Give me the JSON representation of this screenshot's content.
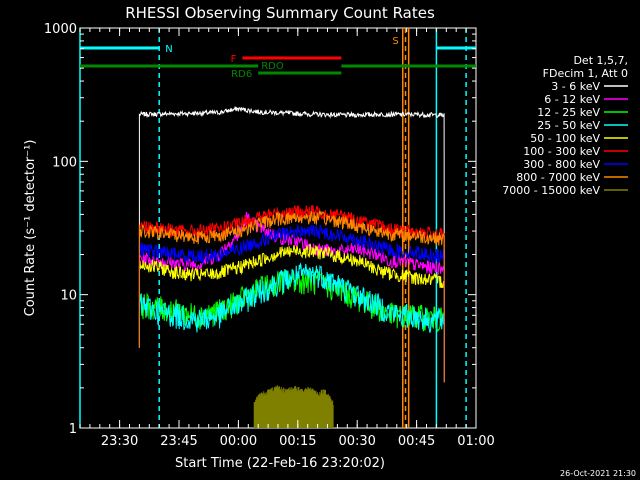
{
  "chart_data": {
    "type": "line",
    "title": "RHESSI Observing Summary Count Rates",
    "xlabel": "Start Time (22-Feb-16 23:20:02)",
    "ylabel": "Count Rate (s⁻¹ detector⁻¹)",
    "y_scale": "log",
    "ylim": [
      1,
      1000
    ],
    "yticks": [
      {
        "value": 1,
        "label": "1"
      },
      {
        "value": 10,
        "label": "10"
      },
      {
        "value": 100,
        "label": "100"
      },
      {
        "value": 1000,
        "label": "1000"
      }
    ],
    "xlim_minutes": [
      0,
      100
    ],
    "xticks": [
      {
        "minute": 10,
        "label": "23:30"
      },
      {
        "minute": 25,
        "label": "23:45"
      },
      {
        "minute": 40,
        "label": "00:00"
      },
      {
        "minute": 55,
        "label": "00:15"
      },
      {
        "minute": 70,
        "label": "00:30"
      },
      {
        "minute": 85,
        "label": "00:45"
      },
      {
        "minute": 100,
        "label": "01:00"
      }
    ],
    "detector_info": [
      "Det 1,5,7,",
      "FDecim 1, Att 0"
    ],
    "flags": [
      {
        "label": "N",
        "color": "#00ffff",
        "segments": [
          [
            0,
            20
          ],
          [
            90,
            100
          ]
        ]
      },
      {
        "label": "F",
        "color": "#ff0000",
        "segments": [
          [
            41,
            66
          ]
        ]
      },
      {
        "label": "RDO",
        "color": "#008800",
        "segments": [
          [
            0,
            45
          ],
          [
            66,
            100
          ]
        ]
      },
      {
        "label": "RD6",
        "color": "#008800",
        "segments": [
          [
            45,
            66
          ]
        ]
      },
      {
        "label": "S",
        "color": "#ff8800",
        "segments": []
      }
    ],
    "vlines": [
      {
        "minute": 0,
        "color": "#00ffff",
        "style": "solid"
      },
      {
        "minute": 20,
        "color": "#00ffff",
        "style": "dashed"
      },
      {
        "minute": 90,
        "color": "#00ffff",
        "style": "solid"
      },
      {
        "minute": 97.5,
        "color": "#00ffff",
        "style": "dashed"
      },
      {
        "minute": 81.5,
        "color": "#ff8800",
        "style": "solid"
      },
      {
        "minute": 83,
        "color": "#ff8800",
        "style": "solid"
      },
      {
        "minute": 82.2,
        "color": "#ff8800",
        "style": "dashed"
      }
    ],
    "series": [
      {
        "name": "3 - 6 keV",
        "color": "#ffffff",
        "x": [
          15,
          25,
          35,
          40,
          45,
          55,
          60,
          68,
          75,
          81,
          84,
          92
        ],
        "y": [
          225,
          228,
          232,
          248,
          235,
          228,
          225,
          222,
          225,
          225,
          225,
          222
        ]
      },
      {
        "name": "6 - 12 keV",
        "color": "#ff00ff",
        "x": [
          15,
          20,
          25,
          30,
          35,
          40,
          42,
          45,
          50,
          55,
          60,
          65,
          70,
          75,
          78,
          81,
          84,
          88,
          92
        ],
        "y": [
          19,
          18,
          17,
          17,
          20,
          28,
          38,
          32,
          27,
          25,
          22,
          21,
          22,
          20,
          18,
          18,
          17,
          16,
          16
        ]
      },
      {
        "name": "12 - 25 keV",
        "color": "#00ff00",
        "x": [
          15,
          20,
          25,
          30,
          35,
          40,
          45,
          50,
          55,
          60,
          65,
          70,
          75,
          78,
          81,
          84,
          88,
          92
        ],
        "y": [
          8.5,
          8,
          7.5,
          7,
          7.5,
          9,
          11,
          12.5,
          13,
          12.5,
          11,
          9.5,
          8,
          7.2,
          7,
          7,
          6.8,
          6.5
        ]
      },
      {
        "name": "25 - 50 keV",
        "color": "#00ffff",
        "x": [
          15,
          20,
          25,
          30,
          35,
          40,
          45,
          50,
          55,
          60,
          65,
          70,
          75,
          78,
          81,
          84,
          88,
          92
        ],
        "y": [
          8.5,
          7.5,
          7,
          6.5,
          7,
          8.5,
          10.5,
          12.5,
          14,
          14.5,
          12,
          10,
          8.5,
          7.5,
          7,
          7,
          6.5,
          6.5
        ]
      },
      {
        "name": "50 - 100 keV",
        "color": "#ffff00",
        "x": [
          15,
          20,
          25,
          30,
          35,
          40,
          45,
          50,
          55,
          60,
          65,
          70,
          75,
          78,
          81,
          84,
          88,
          92
        ],
        "y": [
          17,
          16,
          14.5,
          14,
          14.5,
          16,
          18,
          20.5,
          21.5,
          21,
          19.5,
          18,
          15.5,
          14.5,
          14,
          13.5,
          13,
          12.5
        ]
      },
      {
        "name": "100 - 300 keV",
        "color": "#ff0000",
        "x": [
          15,
          20,
          25,
          30,
          35,
          40,
          45,
          50,
          55,
          60,
          65,
          70,
          75,
          78,
          81,
          84,
          88,
          92
        ],
        "y": [
          33,
          32,
          30,
          30,
          31,
          34,
          38,
          41,
          42,
          42,
          40,
          36,
          33,
          31,
          30,
          30,
          29,
          28
        ]
      },
      {
        "name": "300 - 800 keV",
        "color": "#0000ff",
        "x": [
          15,
          20,
          25,
          30,
          35,
          40,
          45,
          50,
          55,
          60,
          65,
          70,
          75,
          78,
          81,
          84,
          88,
          92
        ],
        "y": [
          22,
          21,
          20,
          19.5,
          20,
          22,
          25,
          28,
          30,
          30,
          28,
          26,
          23,
          22,
          21,
          21,
          20,
          19.5
        ]
      },
      {
        "name": "800 - 7000 keV",
        "color": "#ff8800",
        "x": [
          15,
          20,
          25,
          30,
          35,
          40,
          45,
          50,
          55,
          60,
          65,
          70,
          75,
          78,
          81,
          84,
          88,
          92
        ],
        "y": [
          30,
          29,
          28,
          27,
          28,
          30,
          34,
          37,
          38,
          38,
          36,
          33,
          30,
          29,
          28,
          28,
          27,
          26
        ]
      },
      {
        "name": "7000 - 15000 keV",
        "color": "#808000",
        "x": [
          44,
          46,
          48,
          50,
          52,
          54,
          56,
          58,
          60,
          62,
          64
        ],
        "y": [
          1.6,
          1.8,
          1.9,
          2.0,
          1.9,
          2.0,
          1.9,
          2.0,
          1.8,
          1.9,
          1.5
        ]
      }
    ]
  },
  "timestamp": "26-Oct-2021 21:30"
}
